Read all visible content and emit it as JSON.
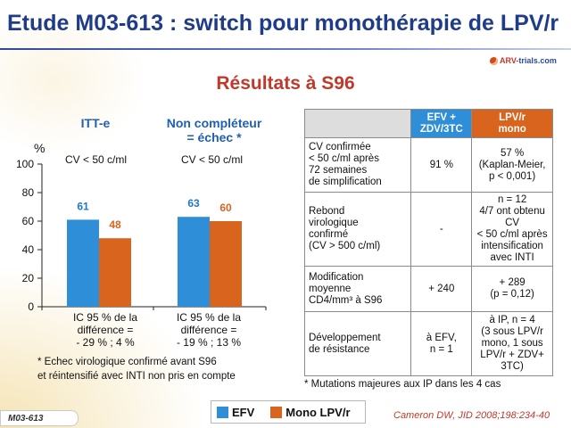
{
  "title": "Etude M03-613 : switch pour monothérapie de LPV/r",
  "logo": {
    "brand": "ARV-",
    "suffix": "trials.com"
  },
  "subtitle": "Résultats à S96",
  "chart_data": {
    "type": "bar",
    "ylabel": "%",
    "ylim": [
      0,
      100
    ],
    "yticks": [
      0,
      20,
      40,
      60,
      80,
      100
    ],
    "categories": [
      "ITT-e",
      "Non compléteur = échec *"
    ],
    "category_headers": [
      "ITT-e",
      "Non compléteur\n= échec *"
    ],
    "condition_labels": [
      "CV < 50 c/ml",
      "CV < 50 c/ml"
    ],
    "series": [
      {
        "name": "EFV",
        "color": "#2e8fd8",
        "values": [
          61,
          63
        ],
        "label_color": "#1f78c8"
      },
      {
        "name": "Mono LPV/r",
        "color": "#d9641e",
        "values": [
          48,
          60
        ],
        "label_color": "#d9641e"
      }
    ],
    "ci_labels": [
      [
        "IC 95 % de la",
        "différence =",
        "- 29 % ; 4 %"
      ],
      [
        "IC 95 % de la",
        "différence =",
        "- 19 % ; 13 %"
      ]
    ]
  },
  "footnote": [
    "* Echec virologique confirmé avant S96",
    "et réintensifié avec INTI non pris en compte"
  ],
  "table": {
    "headers": [
      "",
      "EFV +\nZDV/3TC",
      "LPV/r\nmono"
    ],
    "rows": [
      {
        "label": "CV confirmée\n< 50 c/ml après\n72 semaines\nde simplification",
        "efv": "91 %",
        "lpv": "57 %\n(Kaplan-Meier,\np < 0,001)"
      },
      {
        "label": "Rebond\nvirologique\nconfirmé\n(CV > 500 c/ml)",
        "efv": "-",
        "lpv": "n = 12\n4/7 ont obtenu\nCV\n< 50 c/ml après\nintensification\navec INTI"
      },
      {
        "label": "Modification\nmoyenne\nCD4/mm³ à S96",
        "efv": "+ 240",
        "lpv": "+ 289\n(p = 0,12)"
      },
      {
        "label": "Développement\nde résistance",
        "efv": "à EFV,\nn = 1",
        "lpv": "à IP, n = 4\n(3 sous LPV/r\nmono, 1 sous\nLPV/r + ZDV+\n3TC)"
      }
    ],
    "note": "* Mutations majeures aux IP dans les 4 cas"
  },
  "legend": {
    "efv": "EFV",
    "lpv": "Mono LPV/r"
  },
  "ref_tag": "M03-613",
  "citation": "Cameron DW, JID 2008;198:234-40",
  "colors": {
    "title": "#1f3c88",
    "accent_red": "#c0392b",
    "efv": "#2e8fd8",
    "lpv": "#d9641e",
    "group_head": "#1f5fb4"
  }
}
